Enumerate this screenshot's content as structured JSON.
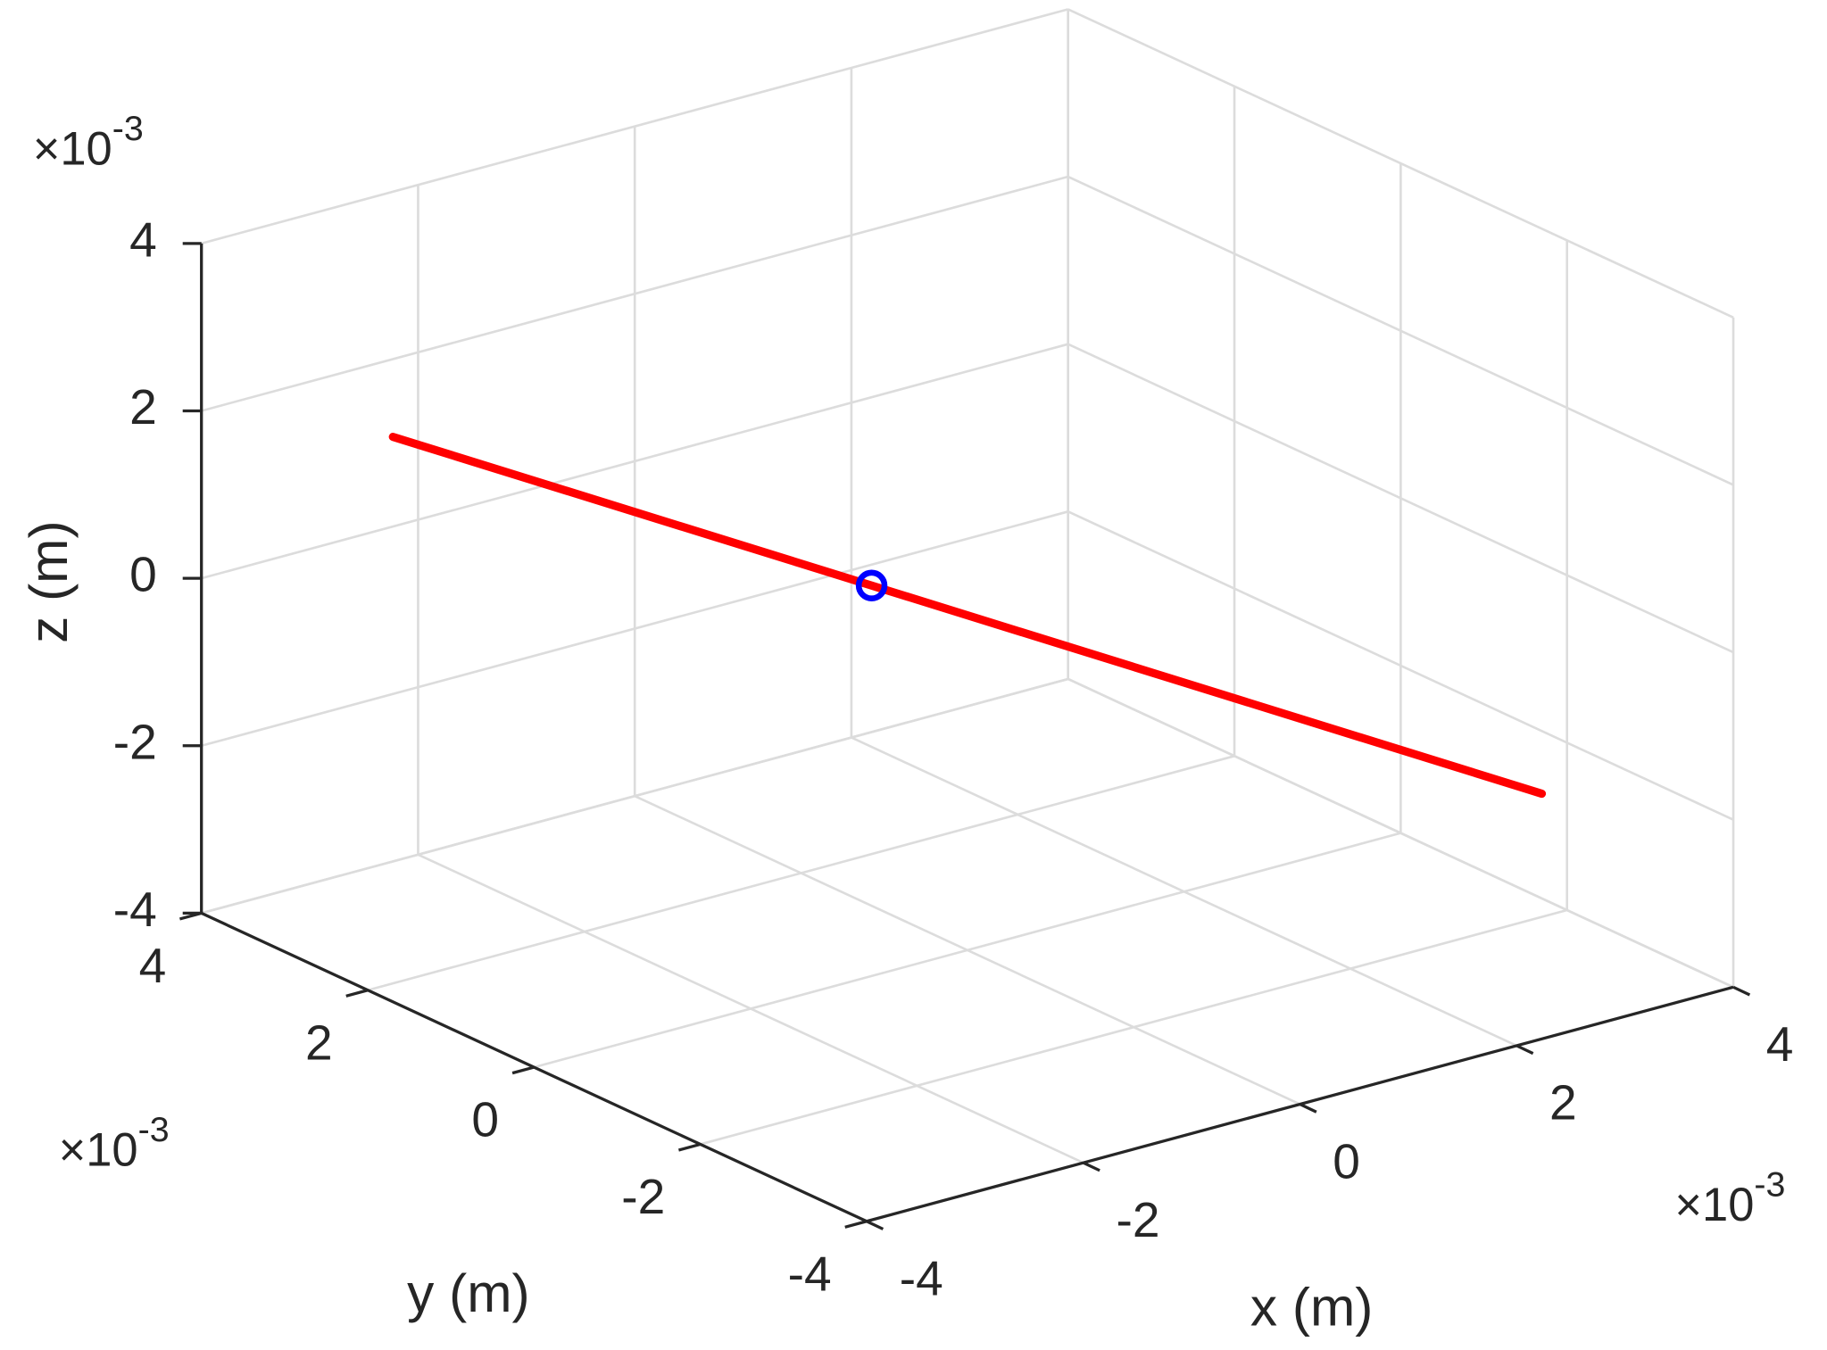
{
  "chart_data": {
    "type": "line3d",
    "xlabel": "x (m)",
    "ylabel": "y (m)",
    "zlabel": "z (m)",
    "xlim": [
      -4,
      4
    ],
    "ylim": [
      -4,
      4
    ],
    "zlim": [
      -4,
      4
    ],
    "xticks": [
      -4,
      -2,
      0,
      2,
      4
    ],
    "yticks": [
      -4,
      -2,
      0,
      2,
      4
    ],
    "zticks": [
      -4,
      -2,
      0,
      2,
      4
    ],
    "xexponent": {
      "base": "×10",
      "power": "-3"
    },
    "yexponent": {
      "base": "×10",
      "power": "-3"
    },
    "zexponent": {
      "base": "×10",
      "power": "-3"
    },
    "grid": true,
    "series": [
      {
        "color": "#ff0000",
        "x": [
          -3,
          3
        ],
        "y": [
          3,
          -3
        ],
        "z": [
          1.8,
          -1.8
        ]
      },
      {
        "color": "#0000ff",
        "marker": "o",
        "x": [
          -0.5
        ],
        "y": [
          0.5
        ],
        "z": [
          0.3
        ]
      }
    ]
  }
}
